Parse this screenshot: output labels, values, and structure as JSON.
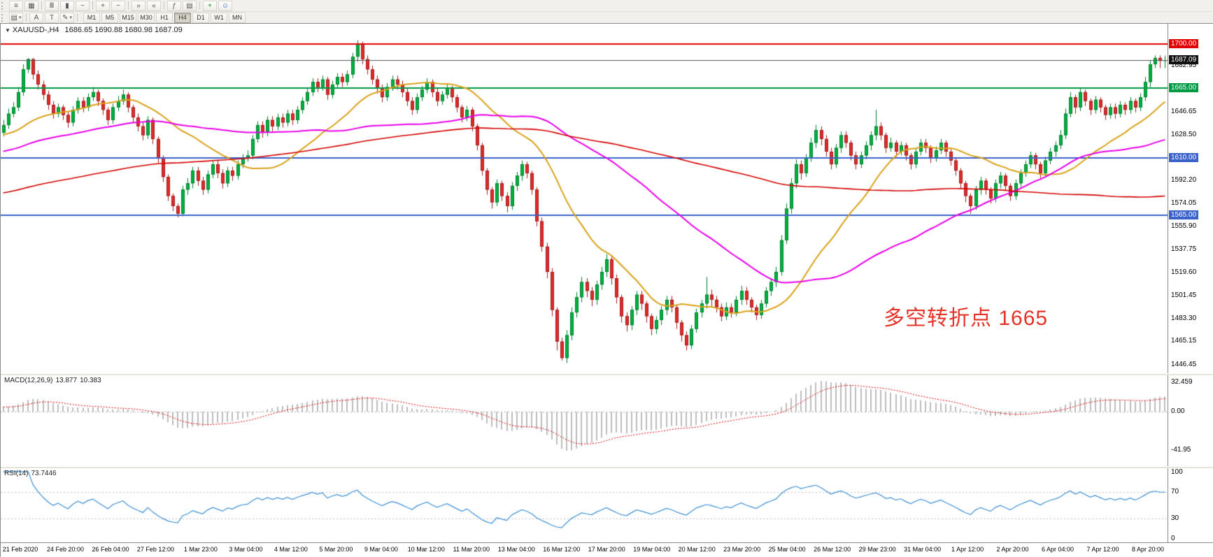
{
  "toolbar": {
    "row1": [
      {
        "name": "menu-icon",
        "glyph": "≡"
      },
      {
        "name": "new-chart-icon",
        "glyph": "▦"
      },
      {
        "sep": true
      },
      {
        "name": "bar-chart-icon",
        "glyph": "Ⅲ"
      },
      {
        "name": "candlestick-chart-icon",
        "glyph": "▮"
      },
      {
        "name": "line-chart-icon",
        "glyph": "~"
      },
      {
        "sep": true
      },
      {
        "name": "zoom-in-icon",
        "glyph": "+"
      },
      {
        "name": "zoom-out-icon",
        "glyph": "−"
      },
      {
        "sep": true
      },
      {
        "name": "auto-scroll-icon",
        "glyph": "»"
      },
      {
        "name": "chart-shift-icon",
        "glyph": "«"
      },
      {
        "sep": true
      },
      {
        "name": "indicators-icon",
        "glyph": "ƒ"
      },
      {
        "name": "templates-icon",
        "glyph": "▤"
      },
      {
        "sep": true
      },
      {
        "name": "new-order-icon",
        "glyph": "+",
        "color": "#1a8f1a"
      },
      {
        "name": "expert-advisor-icon",
        "glyph": "☺",
        "color": "#2266cc"
      }
    ],
    "row2_tools": [
      {
        "name": "line-studies-menu-icon",
        "glyph": "▤",
        "arrow": true
      },
      {
        "sep": true
      },
      {
        "name": "text-tool-icon",
        "glyph": "A"
      },
      {
        "name": "text-label-tool-icon",
        "glyph": "T"
      },
      {
        "name": "draw-objects-icon",
        "glyph": "✎",
        "arrow": true
      },
      {
        "sep": true
      }
    ],
    "timeframes": {
      "items": [
        "M1",
        "M5",
        "M15",
        "M30",
        "H1",
        "H4",
        "D1",
        "W1",
        "MN"
      ],
      "active": "H4"
    }
  },
  "chart": {
    "header": {
      "caret": "▼",
      "symbol": "XAUUSD-,H4",
      "ohlc": "1686.65 1690.88 1680.98 1687.09"
    },
    "annotation": {
      "text": "多空转折点 1665",
      "color": "#e5332a"
    },
    "hlines": [
      {
        "price": 1700,
        "label": "1700.00",
        "color": "#e00000",
        "width": 2
      },
      {
        "price": 1665,
        "label": "1665.00",
        "color": "#009944",
        "width": 2
      },
      {
        "price": 1610,
        "label": "1610.00",
        "color": "#3b62c8",
        "width": 2
      },
      {
        "price": 1565,
        "label": "1565.00",
        "color": "#3b62c8",
        "width": 2
      }
    ],
    "current": {
      "price": 1687.09,
      "label": "1687.09",
      "line_color": "#555555",
      "badge_bg": "#111111"
    },
    "axis_ticks": [
      {
        "text": "1682.95",
        "price": 1682.95
      },
      {
        "text": "1646.65",
        "price": 1646.65
      },
      {
        "text": "1628.50",
        "price": 1628.5
      },
      {
        "text": "1592.20",
        "price": 1592.2
      },
      {
        "text": "1574.05",
        "price": 1574.05
      },
      {
        "text": "1555.90",
        "price": 1555.9
      },
      {
        "text": "1537.75",
        "price": 1537.75
      },
      {
        "text": "1519.60",
        "price": 1519.6
      },
      {
        "text": "1501.45",
        "price": 1501.45
      },
      {
        "text": "1483.30",
        "price": 1483.3
      },
      {
        "text": "1465.15",
        "price": 1465.15
      },
      {
        "text": "1446.45",
        "price": 1446.45
      }
    ]
  },
  "macd": {
    "label": "MACD(12,26,9)",
    "value_main": "13.877",
    "value_signal": "10.383",
    "axis": [
      {
        "text": "32.459",
        "value": 32.459
      },
      {
        "text": "0.00",
        "value": 0
      },
      {
        "text": "-41.95",
        "value": -41.95
      }
    ]
  },
  "rsi": {
    "label": "RSI(14)",
    "value": "73.7446",
    "axis": [
      {
        "text": "100",
        "value": 100
      },
      {
        "text": "70",
        "value": 70
      },
      {
        "text": "30",
        "value": 30
      },
      {
        "text": "0",
        "value": 0
      }
    ]
  },
  "time_axis": {
    "labels": [
      "21 Feb 2020",
      "24 Feb 20:00",
      "26 Feb 04:00",
      "27 Feb 12:00",
      "1 Mar 23:00",
      "3 Mar 04:00",
      "4 Mar 12:00",
      "5 Mar 20:00",
      "9 Mar 04:00",
      "10 Mar 12:00",
      "11 Mar 20:00",
      "13 Mar 04:00",
      "16 Mar 12:00",
      "17 Mar 20:00",
      "19 Mar 04:00",
      "20 Mar 12:00",
      "23 Mar 20:00",
      "25 Mar 04:00",
      "26 Mar 12:00",
      "29 Mar 23:00",
      "31 Mar 04:00",
      "1 Apr 12:00",
      "2 Apr 20:00",
      "6 Apr 04:00",
      "7 Apr 12:00",
      "8 Apr 20:00"
    ]
  },
  "chart_data": {
    "type": "candlestick",
    "symbol": "XAUUSD",
    "timeframe": "H4",
    "price_range": [
      1440,
      1716
    ],
    "colors": {
      "up": "#00b140",
      "up_stroke": "#00802e",
      "down": "#e02b2b",
      "down_stroke": "#a31d1d"
    },
    "first_open": 1630,
    "pre_history": {
      "start": 1520,
      "end": 1636,
      "count": 160
    },
    "hlc": [
      [
        1640,
        1627,
        1636
      ],
      [
        1649,
        1633,
        1645
      ],
      [
        1654,
        1642,
        1650
      ],
      [
        1666,
        1647,
        1662
      ],
      [
        1684,
        1659,
        1680
      ],
      [
        1689,
        1677,
        1688
      ],
      [
        1689,
        1672,
        1676
      ],
      [
        1679,
        1664,
        1668
      ],
      [
        1671,
        1656,
        1660
      ],
      [
        1663,
        1648,
        1652
      ],
      [
        1655,
        1641,
        1645
      ],
      [
        1653,
        1642,
        1650
      ],
      [
        1652,
        1640,
        1644
      ],
      [
        1647,
        1634,
        1638
      ],
      [
        1651,
        1635,
        1648
      ],
      [
        1658,
        1645,
        1655
      ],
      [
        1658,
        1646,
        1650
      ],
      [
        1661,
        1647,
        1658
      ],
      [
        1666,
        1655,
        1662
      ],
      [
        1664,
        1651,
        1655
      ],
      [
        1657,
        1644,
        1648
      ],
      [
        1650,
        1636,
        1640
      ],
      [
        1653,
        1637,
        1650
      ],
      [
        1659,
        1647,
        1655
      ],
      [
        1664,
        1652,
        1660
      ],
      [
        1662,
        1646,
        1650
      ],
      [
        1652,
        1638,
        1642
      ],
      [
        1645,
        1631,
        1635
      ],
      [
        1638,
        1624,
        1628
      ],
      [
        1643,
        1625,
        1640
      ],
      [
        1642,
        1621,
        1625
      ],
      [
        1627,
        1606,
        1610
      ],
      [
        1612,
        1591,
        1595
      ],
      [
        1597,
        1576,
        1580
      ],
      [
        1582,
        1568,
        1572
      ],
      [
        1574,
        1563,
        1566
      ],
      [
        1588,
        1564,
        1585
      ],
      [
        1594,
        1581,
        1590
      ],
      [
        1603,
        1586,
        1600
      ],
      [
        1603,
        1588,
        1592
      ],
      [
        1595,
        1581,
        1585
      ],
      [
        1600,
        1582,
        1597
      ],
      [
        1608,
        1594,
        1605
      ],
      [
        1608,
        1594,
        1598
      ],
      [
        1601,
        1586,
        1590
      ],
      [
        1603,
        1587,
        1600
      ],
      [
        1603,
        1592,
        1596
      ],
      [
        1608,
        1593,
        1605
      ],
      [
        1613,
        1602,
        1610
      ],
      [
        1616,
        1607,
        1612
      ],
      [
        1628,
        1609,
        1625
      ],
      [
        1639,
        1622,
        1636
      ],
      [
        1639,
        1626,
        1630
      ],
      [
        1643,
        1627,
        1640
      ],
      [
        1643,
        1631,
        1635
      ],
      [
        1645,
        1632,
        1642
      ],
      [
        1645,
        1634,
        1638
      ],
      [
        1648,
        1635,
        1645
      ],
      [
        1648,
        1636,
        1640
      ],
      [
        1651,
        1637,
        1648
      ],
      [
        1658,
        1645,
        1655
      ],
      [
        1665,
        1652,
        1662
      ],
      [
        1673,
        1659,
        1670
      ],
      [
        1673,
        1662,
        1666
      ],
      [
        1675,
        1663,
        1672
      ],
      [
        1674,
        1656,
        1660
      ],
      [
        1671,
        1657,
        1668
      ],
      [
        1677,
        1665,
        1674
      ],
      [
        1677,
        1666,
        1670
      ],
      [
        1679,
        1667,
        1676
      ],
      [
        1693,
        1673,
        1690
      ],
      [
        1703,
        1686,
        1700
      ],
      [
        1702,
        1684,
        1688
      ],
      [
        1691,
        1676,
        1680
      ],
      [
        1683,
        1668,
        1672
      ],
      [
        1675,
        1661,
        1665
      ],
      [
        1668,
        1654,
        1658
      ],
      [
        1669,
        1655,
        1666
      ],
      [
        1675,
        1663,
        1672
      ],
      [
        1675,
        1664,
        1668
      ],
      [
        1671,
        1658,
        1662
      ],
      [
        1665,
        1651,
        1655
      ],
      [
        1658,
        1644,
        1648
      ],
      [
        1661,
        1645,
        1658
      ],
      [
        1667,
        1655,
        1664
      ],
      [
        1673,
        1661,
        1670
      ],
      [
        1672,
        1658,
        1662
      ],
      [
        1665,
        1651,
        1655
      ],
      [
        1663,
        1652,
        1660
      ],
      [
        1668,
        1657,
        1665
      ],
      [
        1667,
        1654,
        1658
      ],
      [
        1660,
        1646,
        1650
      ],
      [
        1652,
        1638,
        1642
      ],
      [
        1651,
        1639,
        1648
      ],
      [
        1650,
        1631,
        1635
      ],
      [
        1637,
        1616,
        1620
      ],
      [
        1622,
        1596,
        1600
      ],
      [
        1602,
        1581,
        1585
      ],
      [
        1587,
        1570,
        1575
      ],
      [
        1593,
        1572,
        1590
      ],
      [
        1592,
        1576,
        1580
      ],
      [
        1583,
        1567,
        1572
      ],
      [
        1591,
        1569,
        1588
      ],
      [
        1599,
        1584,
        1596
      ],
      [
        1608,
        1592,
        1605
      ],
      [
        1607,
        1594,
        1598
      ],
      [
        1600,
        1581,
        1585
      ],
      [
        1587,
        1556,
        1560
      ],
      [
        1563,
        1536,
        1540
      ],
      [
        1543,
        1515,
        1520
      ],
      [
        1523,
        1485,
        1490
      ],
      [
        1492,
        1458,
        1465
      ],
      [
        1468,
        1450,
        1452
      ],
      [
        1474,
        1448,
        1470
      ],
      [
        1492,
        1466,
        1488
      ],
      [
        1504,
        1484,
        1500
      ],
      [
        1516,
        1496,
        1512
      ],
      [
        1515,
        1500,
        1505
      ],
      [
        1508,
        1493,
        1498
      ],
      [
        1513,
        1494,
        1510
      ],
      [
        1524,
        1506,
        1520
      ],
      [
        1534,
        1516,
        1530
      ],
      [
        1532,
        1510,
        1515
      ],
      [
        1518,
        1495,
        1500
      ],
      [
        1502,
        1480,
        1485
      ],
      [
        1488,
        1473,
        1478
      ],
      [
        1493,
        1474,
        1490
      ],
      [
        1505,
        1486,
        1502
      ],
      [
        1505,
        1490,
        1495
      ],
      [
        1497,
        1480,
        1485
      ],
      [
        1487,
        1470,
        1475
      ],
      [
        1485,
        1471,
        1482
      ],
      [
        1493,
        1478,
        1490
      ],
      [
        1501,
        1486,
        1498
      ],
      [
        1501,
        1488,
        1492
      ],
      [
        1494,
        1475,
        1480
      ],
      [
        1482,
        1465,
        1470
      ],
      [
        1473,
        1458,
        1462
      ],
      [
        1478,
        1459,
        1475
      ],
      [
        1491,
        1472,
        1488
      ],
      [
        1498,
        1484,
        1495
      ],
      [
        1516,
        1491,
        1502
      ],
      [
        1506,
        1493,
        1498
      ],
      [
        1501,
        1488,
        1492
      ],
      [
        1495,
        1481,
        1485
      ],
      [
        1496,
        1482,
        1492
      ],
      [
        1495,
        1484,
        1488
      ],
      [
        1501,
        1485,
        1498
      ],
      [
        1509,
        1494,
        1505
      ],
      [
        1508,
        1494,
        1498
      ],
      [
        1500,
        1488,
        1492
      ],
      [
        1494,
        1482,
        1486
      ],
      [
        1498,
        1483,
        1495
      ],
      [
        1508,
        1492,
        1505
      ],
      [
        1515,
        1501,
        1512
      ],
      [
        1524,
        1508,
        1520
      ],
      [
        1549,
        1517,
        1545
      ],
      [
        1574,
        1542,
        1570
      ],
      [
        1594,
        1566,
        1590
      ],
      [
        1609,
        1586,
        1605
      ],
      [
        1608,
        1593,
        1598
      ],
      [
        1613,
        1595,
        1610
      ],
      [
        1626,
        1607,
        1622
      ],
      [
        1636,
        1618,
        1632
      ],
      [
        1635,
        1620,
        1625
      ],
      [
        1628,
        1611,
        1615
      ],
      [
        1618,
        1601,
        1605
      ],
      [
        1621,
        1602,
        1618
      ],
      [
        1631,
        1614,
        1628
      ],
      [
        1631,
        1618,
        1622
      ],
      [
        1624,
        1608,
        1612
      ],
      [
        1615,
        1601,
        1605
      ],
      [
        1615,
        1602,
        1612
      ],
      [
        1623,
        1609,
        1620
      ],
      [
        1631,
        1616,
        1628
      ],
      [
        1648,
        1624,
        1635
      ],
      [
        1638,
        1624,
        1628
      ],
      [
        1630,
        1614,
        1618
      ],
      [
        1626,
        1615,
        1622
      ],
      [
        1624,
        1611,
        1615
      ],
      [
        1623,
        1612,
        1620
      ],
      [
        1622,
        1608,
        1612
      ],
      [
        1614,
        1601,
        1605
      ],
      [
        1618,
        1602,
        1615
      ],
      [
        1625,
        1612,
        1622
      ],
      [
        1625,
        1614,
        1618
      ],
      [
        1620,
        1606,
        1610
      ],
      [
        1619,
        1607,
        1616
      ],
      [
        1625,
        1613,
        1622
      ],
      [
        1624,
        1611,
        1615
      ],
      [
        1617,
        1604,
        1608
      ],
      [
        1610,
        1596,
        1600
      ],
      [
        1602,
        1586,
        1590
      ],
      [
        1592,
        1575,
        1580
      ],
      [
        1582,
        1566,
        1572
      ],
      [
        1588,
        1569,
        1585
      ],
      [
        1595,
        1581,
        1592
      ],
      [
        1594,
        1581,
        1585
      ],
      [
        1587,
        1574,
        1578
      ],
      [
        1593,
        1575,
        1590
      ],
      [
        1599,
        1586,
        1596
      ],
      [
        1598,
        1584,
        1588
      ],
      [
        1590,
        1576,
        1580
      ],
      [
        1593,
        1577,
        1590
      ],
      [
        1601,
        1587,
        1598
      ],
      [
        1608,
        1595,
        1605
      ],
      [
        1615,
        1602,
        1612
      ],
      [
        1614,
        1601,
        1605
      ],
      [
        1607,
        1594,
        1598
      ],
      [
        1611,
        1595,
        1608
      ],
      [
        1618,
        1605,
        1615
      ],
      [
        1623,
        1611,
        1620
      ],
      [
        1632,
        1617,
        1628
      ],
      [
        1649,
        1625,
        1645
      ],
      [
        1662,
        1642,
        1658
      ],
      [
        1660,
        1645,
        1650
      ],
      [
        1665,
        1647,
        1662
      ],
      [
        1664,
        1651,
        1655
      ],
      [
        1657,
        1644,
        1648
      ],
      [
        1659,
        1645,
        1656
      ],
      [
        1658,
        1646,
        1650
      ],
      [
        1652,
        1640,
        1644
      ],
      [
        1653,
        1641,
        1650
      ],
      [
        1653,
        1641,
        1645
      ],
      [
        1655,
        1642,
        1652
      ],
      [
        1654,
        1644,
        1648
      ],
      [
        1658,
        1645,
        1655
      ],
      [
        1657,
        1646,
        1650
      ],
      [
        1661,
        1647,
        1658
      ],
      [
        1674,
        1655,
        1670
      ],
      [
        1687,
        1666,
        1684
      ],
      [
        1691,
        1681,
        1689
      ],
      [
        1691,
        1681,
        1686.65
      ],
      [
        1690.88,
        1680.98,
        1687.09
      ]
    ],
    "moving_averages": [
      {
        "period": 24,
        "color": "#d9a21b",
        "width": 2
      },
      {
        "period": 60,
        "color": "#e800e8",
        "width": 2
      },
      {
        "period": 150,
        "color": "#d40000",
        "width": 1.6
      }
    ],
    "macd": {
      "fast": 12,
      "slow": 26,
      "signal": 9,
      "range": [
        -60,
        40
      ],
      "hist_color": "#bdbdbd",
      "signal_color": "#e00000"
    },
    "rsi": {
      "period": 14,
      "range": [
        -5,
        105
      ],
      "color": "#3c8fd6",
      "levels": [
        70,
        30
      ]
    }
  }
}
